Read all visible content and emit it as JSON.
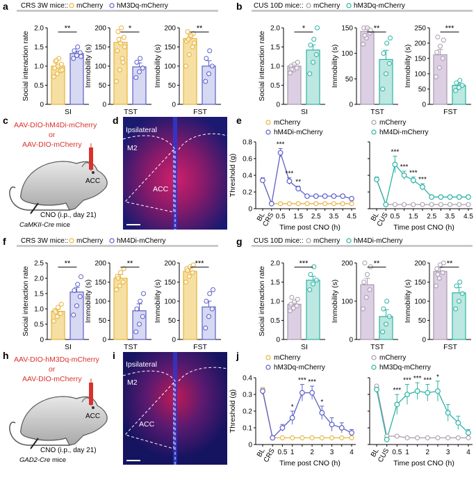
{
  "colors": {
    "mcherry_y": "#E8B23A",
    "hm_blue": "#5B5FC7",
    "mcherry_g": "#A89AAE",
    "hm_teal": "#2AB3A3",
    "grey_bar": "#C9C9C9",
    "red_text": "#D9312B",
    "purple_l": "#C8B4D4",
    "teal_l": "#A9DED7"
  },
  "panels": {
    "a": {
      "letter": "a",
      "header": "CRS 3W mice::",
      "legend": [
        "mCherry",
        "hM3Dq-mCherry"
      ]
    },
    "b": {
      "letter": "b",
      "header": "CUS 10D mice::",
      "legend": [
        "mCherry",
        "hM3Dq-mCherry"
      ]
    },
    "c": {
      "letter": "c",
      "virus1": "AAV-DIO-hM4Di-mCherry",
      "or": "or",
      "virus2": "AAV-DIO-mCherry",
      "acc": "ACC",
      "cno": "CNO (i.p., day 21)",
      "mouse": "CaMKII-Cre",
      "mouse_suffix": " mice"
    },
    "d": {
      "letter": "d",
      "ipsi": "Ipsilateral",
      "m2": "M2",
      "acc": "ACC"
    },
    "e": {
      "letter": "e",
      "legend_l": [
        "mCherry",
        "hM4Di-mCherry"
      ],
      "legend_r": [
        "mCherry",
        "hM4Di-mCherry"
      ]
    },
    "f": {
      "letter": "f",
      "header": "CRS 3W mice::",
      "legend": [
        "mCherry",
        "hM4Di-mCherry"
      ]
    },
    "g": {
      "letter": "g",
      "header": "CUS 10D mice::",
      "legend": [
        "mCherry",
        "hM4Di-mCherry"
      ]
    },
    "h": {
      "letter": "h",
      "virus1": "AAV-DIO-hM3Dq-mCherry",
      "or": "or",
      "virus2": "AAV-DIO-mCherry",
      "acc": "ACC",
      "cno": "CNO (i.p., day 21)",
      "mouse": "GAD2-Cre",
      "mouse_suffix": " mice"
    },
    "i": {
      "letter": "i",
      "ipsi": "Ipsilateral",
      "m2": "M2",
      "acc": "ACC"
    },
    "j": {
      "letter": "j",
      "legend_l": [
        "mCherry",
        "hM3Dq-mCherry"
      ],
      "legend_r": [
        "mCherry",
        "hM3Dq-mCherry"
      ]
    }
  },
  "chart_data": [
    {
      "id": "a1",
      "type": "bar",
      "ylabel": "Social interaction rate",
      "ylim": [
        0,
        2
      ],
      "ticks": [
        "0",
        "0.5",
        "1.0",
        "1.5",
        "2.0"
      ],
      "tickvals": [
        0,
        0.5,
        1,
        1.5,
        2
      ],
      "xlabel": "SI",
      "values": [
        1.0,
        1.33
      ],
      "sig": "**",
      "scheme": "yb",
      "err": [
        0.05,
        0.06
      ],
      "pts": [
        [
          0.72,
          0.8,
          0.88,
          0.95,
          1.0,
          1.05,
          1.12,
          1.2,
          0.9,
          1.15
        ],
        [
          1.2,
          1.28,
          1.35,
          1.4,
          1.5,
          1.25
        ]
      ]
    },
    {
      "id": "a2",
      "type": "bar",
      "ylabel": "Immobility (s)",
      "ylim": [
        0,
        200
      ],
      "ticks": [
        "0",
        "50",
        "100",
        "150",
        "200"
      ],
      "tickvals": [
        0,
        50,
        100,
        150,
        200
      ],
      "xlabel": "TST",
      "values": [
        162,
        98
      ],
      "sig": "*",
      "scheme": "yb",
      "err": [
        13,
        10
      ],
      "pts": [
        [
          60,
          90,
          110,
          140,
          160,
          175,
          190,
          200,
          150,
          170,
          120
        ],
        [
          70,
          85,
          95,
          110,
          120
        ]
      ]
    },
    {
      "id": "a3",
      "type": "bar",
      "ylabel": "Immobility (s)",
      "ylim": [
        0,
        200
      ],
      "ticks": [
        "0",
        "50",
        "100",
        "150",
        "200"
      ],
      "tickvals": [
        0,
        50,
        100,
        150,
        200
      ],
      "xlabel": "FST",
      "values": [
        172,
        100
      ],
      "sig": "**",
      "scheme": "yb",
      "err": [
        10,
        14
      ],
      "pts": [
        [
          100,
          130,
          150,
          165,
          175,
          185,
          190,
          180,
          160,
          170
        ],
        [
          60,
          80,
          100,
          120,
          140
        ]
      ]
    },
    {
      "id": "b1",
      "type": "bar",
      "ylabel": "Social interaction rate",
      "ylim": [
        0,
        2
      ],
      "ticks": [
        "0",
        "0.5",
        "1.0",
        "1.5",
        "2.0"
      ],
      "tickvals": [
        0,
        0.5,
        1,
        1.5,
        2
      ],
      "xlabel": "SI",
      "values": [
        1.0,
        1.42
      ],
      "sig": "*",
      "scheme": "gt",
      "err": [
        0.05,
        0.13
      ],
      "pts": [
        [
          0.82,
          0.9,
          0.95,
          1.0,
          1.05,
          1.1,
          0.92
        ],
        [
          0.8,
          1.1,
          1.3,
          1.55,
          1.7,
          2.0
        ]
      ]
    },
    {
      "id": "b2",
      "type": "bar",
      "ylabel": "Immobility (s)",
      "ylim": [
        0,
        150
      ],
      "ticks": [
        "0",
        "50",
        "100",
        "150"
      ],
      "tickvals": [
        0,
        50,
        100,
        150
      ],
      "xlabel": "TST",
      "values": [
        143,
        88
      ],
      "sig": "**",
      "scheme": "gt",
      "err": [
        8,
        18
      ],
      "pts": [
        [
          118,
          130,
          140,
          150,
          160,
          145,
          135
        ],
        [
          30,
          60,
          80,
          100,
          120,
          130
        ]
      ]
    },
    {
      "id": "b3",
      "type": "bar",
      "ylabel": "Immobility (s)",
      "ylim": [
        0,
        250
      ],
      "ticks": [
        "0",
        "50",
        "100",
        "150",
        "200",
        "250"
      ],
      "tickvals": [
        0,
        50,
        100,
        150,
        200,
        250
      ],
      "xlabel": "FST",
      "values": [
        162,
        62
      ],
      "sig": "***",
      "scheme": "gt",
      "err": [
        17,
        6
      ],
      "pts": [
        [
          90,
          120,
          150,
          170,
          190,
          210,
          220
        ],
        [
          45,
          55,
          62,
          70,
          78
        ]
      ]
    },
    {
      "id": "f1",
      "type": "bar",
      "ylabel": "Social interaction rate",
      "ylim": [
        0,
        2.5
      ],
      "ticks": [
        "0",
        "0.5",
        "1.0",
        "1.5",
        "2.0",
        "2.5"
      ],
      "tickvals": [
        0,
        0.5,
        1,
        1.5,
        2,
        2.5
      ],
      "xlabel": "SI",
      "values": [
        0.92,
        1.55
      ],
      "sig": "**",
      "scheme": "yb",
      "err": [
        0.07,
        0.15
      ],
      "pts": [
        [
          0.6,
          0.75,
          0.85,
          0.95,
          1.05,
          1.15,
          0.9
        ],
        [
          0.8,
          1.1,
          1.4,
          1.6,
          1.8,
          2.05
        ]
      ]
    },
    {
      "id": "f2",
      "type": "bar",
      "ylabel": "Immobility (s)",
      "ylim": [
        0,
        200
      ],
      "ticks": [
        "0",
        "50",
        "100",
        "150",
        "200"
      ],
      "tickvals": [
        0,
        50,
        100,
        150,
        200
      ],
      "xlabel": "TST",
      "values": [
        160,
        75
      ],
      "sig": "**",
      "scheme": "yb",
      "err": [
        10,
        18
      ],
      "pts": [
        [
          130,
          140,
          150,
          165,
          175,
          185,
          160
        ],
        [
          20,
          40,
          60,
          80,
          100,
          120
        ]
      ]
    },
    {
      "id": "f3",
      "type": "bar",
      "ylabel": "Immobility (s)",
      "ylim": [
        0,
        200
      ],
      "ticks": [
        "0",
        "50",
        "100",
        "150",
        "200"
      ],
      "tickvals": [
        0,
        50,
        100,
        150,
        200
      ],
      "xlabel": "FST",
      "values": [
        178,
        85
      ],
      "sig": "***",
      "scheme": "yb",
      "err": [
        8,
        15
      ],
      "pts": [
        [
          150,
          165,
          175,
          185,
          190,
          195,
          180
        ],
        [
          30,
          60,
          80,
          100,
          120,
          130
        ]
      ]
    },
    {
      "id": "g1",
      "type": "bar",
      "ylabel": "Social interaction rate",
      "ylim": [
        0,
        2
      ],
      "ticks": [
        "0",
        "0.5",
        "1.0",
        "1.5",
        "2.0"
      ],
      "tickvals": [
        0,
        0.5,
        1,
        1.5,
        2
      ],
      "xlabel": "SI",
      "values": [
        0.92,
        1.55
      ],
      "sig": "***",
      "scheme": "gt",
      "err": [
        0.05,
        0.1
      ],
      "pts": [
        [
          0.75,
          0.82,
          0.88,
          0.92,
          0.98,
          1.05,
          1.1
        ],
        [
          1.3,
          1.45,
          1.55,
          1.7,
          1.9
        ]
      ]
    },
    {
      "id": "g2",
      "type": "bar",
      "ylabel": "Immobility (s)",
      "ylim": [
        0,
        200
      ],
      "ticks": [
        "0",
        "100",
        "200"
      ],
      "tickvals": [
        0,
        100,
        200
      ],
      "xlabel": "TST",
      "values": [
        143,
        60
      ],
      "sig": "**",
      "scheme": "gt",
      "err": [
        17,
        18
      ],
      "pts": [
        [
          80,
          110,
          130,
          150,
          170,
          190,
          210
        ],
        [
          20,
          40,
          60,
          80,
          100
        ]
      ]
    },
    {
      "id": "g3",
      "type": "bar",
      "ylabel": "Immobility (s)",
      "ylim": [
        0,
        200
      ],
      "ticks": [
        "0",
        "50",
        "100",
        "150",
        "200"
      ],
      "tickvals": [
        0,
        50,
        100,
        150,
        200
      ],
      "xlabel": "FST",
      "values": [
        178,
        122
      ],
      "sig": "**",
      "scheme": "gt",
      "err": [
        10,
        14
      ],
      "pts": [
        [
          140,
          160,
          175,
          185,
          195,
          200,
          170
        ],
        [
          80,
          100,
          120,
          140,
          150
        ]
      ]
    },
    {
      "id": "e",
      "type": "line",
      "ylabel": "Threshold (g)",
      "xlabel": "Time post CNO (h)",
      "ylim": [
        0,
        0.8
      ],
      "ticks": [
        "0",
        "0.2",
        "0.4",
        "0.6",
        "0.8"
      ],
      "tickvals": [
        0,
        0.2,
        0.4,
        0.6,
        0.8
      ],
      "left": {
        "xticks": [
          "BL",
          "CRS",
          "0.5",
          "1.5",
          "2.5",
          "3.5",
          "4.5"
        ],
        "ctrl": [
          0.34,
          0.06,
          0.06,
          0.06,
          0.06,
          0.06,
          0.06,
          0.06,
          0.06,
          0.06,
          0.06
        ],
        "exp": [
          0.34,
          0.06,
          0.67,
          0.33,
          0.24,
          0.15,
          0.15,
          0.15,
          0.15,
          0.15,
          0.12
        ],
        "err": [
          0.03,
          0.01,
          0.05,
          0.04,
          0.03,
          0.02,
          0.02,
          0.02,
          0.02,
          0.02,
          0.02
        ],
        "sig": [
          [
            2,
            "***"
          ],
          [
            3,
            "***"
          ],
          [
            4,
            "**"
          ]
        ]
      },
      "right": {
        "xticks": [
          "BL",
          "CUS",
          "0.5",
          "1.5",
          "2.5",
          "3.5",
          "4.5"
        ],
        "ctrl": [
          0.35,
          0.05,
          0.05,
          0.05,
          0.05,
          0.05,
          0.05,
          0.05,
          0.05,
          0.05,
          0.05
        ],
        "exp": [
          0.35,
          0.05,
          0.53,
          0.4,
          0.34,
          0.26,
          0.14,
          0.14,
          0.14,
          0.14,
          0.14
        ],
        "err": [
          0.03,
          0.01,
          0.1,
          0.05,
          0.04,
          0.04,
          0.02,
          0.02,
          0.02,
          0.02,
          0.02
        ],
        "sig": [
          [
            2,
            "***"
          ],
          [
            3,
            "***"
          ],
          [
            4,
            "***"
          ],
          [
            5,
            "***"
          ]
        ]
      }
    },
    {
      "id": "j",
      "type": "line",
      "ylabel": "Threshold (g)",
      "xlabel": "Time post CNO (h)",
      "ylim": [
        0,
        0.4
      ],
      "ticks": [
        "0",
        "0.1",
        "0.2",
        "0.3",
        "0.4"
      ],
      "tickvals": [
        0,
        0.1,
        0.2,
        0.3,
        0.4
      ],
      "left": {
        "xticks": [
          "BL",
          "CRS",
          "0.5",
          "1",
          "2",
          "3",
          "4"
        ],
        "ctrl": [
          0.33,
          0.04,
          0.04,
          0.04,
          0.04,
          0.04,
          0.04,
          0.04,
          0.04,
          0.04
        ],
        "exp": [
          0.32,
          0.04,
          0.1,
          0.16,
          0.31,
          0.31,
          0.19,
          0.12,
          0.1,
          0.07
        ],
        "err": [
          0.02,
          0.01,
          0.02,
          0.04,
          0.05,
          0.04,
          0.04,
          0.04,
          0.03,
          0.02
        ],
        "sig": [
          [
            3,
            "*"
          ],
          [
            4,
            "***"
          ],
          [
            5,
            "***"
          ],
          [
            6,
            "*"
          ]
        ]
      },
      "right": {
        "xticks": [
          "BL",
          "CUS",
          "0.5",
          "1",
          "2",
          "3",
          "4"
        ],
        "ctrl": [
          0.35,
          0.05,
          0.05,
          0.04,
          0.04,
          0.04,
          0.04,
          0.04,
          0.04,
          0.04
        ],
        "exp": [
          0.33,
          0.03,
          0.24,
          0.3,
          0.32,
          0.31,
          0.32,
          0.19,
          0.13,
          0.07
        ],
        "err": [
          0.02,
          0.01,
          0.06,
          0.06,
          0.05,
          0.05,
          0.06,
          0.05,
          0.04,
          0.02
        ],
        "sig": [
          [
            2,
            "***"
          ],
          [
            3,
            "***"
          ],
          [
            4,
            "***"
          ],
          [
            5,
            "***"
          ],
          [
            6,
            "*"
          ]
        ]
      }
    }
  ]
}
